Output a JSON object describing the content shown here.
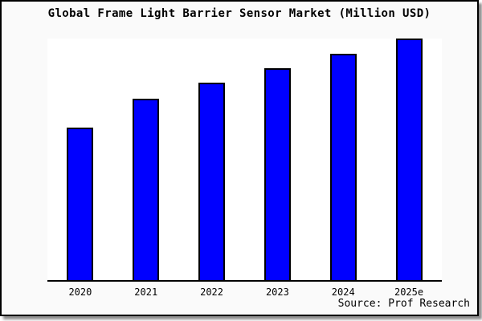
{
  "figure": {
    "title": "Global Frame Light Barrier Sensor Market (Million USD)",
    "source": "Source: Prof Research"
  },
  "chart_data": {
    "type": "bar",
    "title": "Global Frame Light Barrier Sensor Market (Million USD)",
    "categories": [
      "2020",
      "2021",
      "2022",
      "2023",
      "2024",
      "2025e"
    ],
    "values": [
      63.1,
      75.1,
      81.7,
      87.7,
      93.7,
      100
    ],
    "values_note": "No y-axis scale or data labels are shown in the image; values are relative bar heights normalized to 2025e = 100",
    "xlabel": "",
    "ylabel": "",
    "ylim": [
      0,
      100
    ],
    "grid": false,
    "legend": null,
    "annotations": [
      "Source: Prof Research"
    ],
    "colors": {
      "bar_fill": "#0000ff",
      "bar_edge": "#000000",
      "plot_background": "#ffffff",
      "figure_background": "#fafafa",
      "axis": "#000000",
      "text": "#000000"
    }
  }
}
